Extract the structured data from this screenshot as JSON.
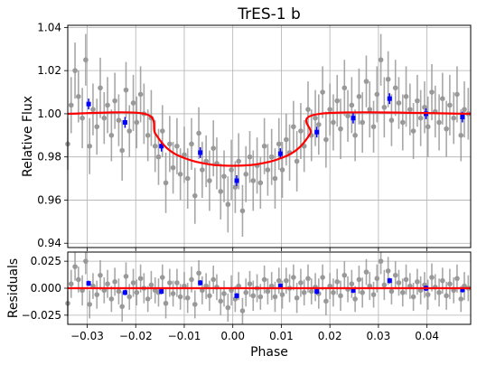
{
  "chart_data": [
    {
      "panel": "main",
      "type": "scatter",
      "title": "TrES-1 b",
      "xlabel": "",
      "ylabel": "Relative Flux",
      "xlim": [
        -0.034,
        0.049
      ],
      "ylim": [
        0.938,
        1.041
      ],
      "xticks": [
        -0.03,
        -0.02,
        -0.01,
        0.0,
        0.01,
        0.02,
        0.03,
        0.04
      ],
      "xtick_labels": [
        "",
        "",
        "",
        "",
        "",
        "",
        "",
        ""
      ],
      "yticks": [
        0.94,
        0.96,
        0.98,
        1.0,
        1.02,
        1.04
      ],
      "ytick_labels": [
        "0.94",
        "0.96",
        "0.98",
        "1.00",
        "1.02",
        "1.04"
      ],
      "grid": true,
      "series": [
        {
          "kind": "observations",
          "color": "#999999",
          "x": [
            -0.034,
            -0.0333,
            -0.0325,
            -0.0318,
            -0.031,
            -0.0303,
            -0.0295,
            -0.0288,
            -0.028,
            -0.0273,
            -0.0265,
            -0.0258,
            -0.025,
            -0.0243,
            -0.0235,
            -0.0228,
            -0.022,
            -0.0213,
            -0.0205,
            -0.0198,
            -0.019,
            -0.0183,
            -0.0175,
            -0.0168,
            -0.016,
            -0.0153,
            -0.0145,
            -0.0138,
            -0.013,
            -0.0123,
            -0.0115,
            -0.0108,
            -0.01,
            -0.0093,
            -0.0085,
            -0.0078,
            -0.007,
            -0.0063,
            -0.0055,
            -0.0048,
            -0.004,
            -0.0033,
            -0.0025,
            -0.0018,
            -0.001,
            -0.0003,
            0.0005,
            0.0012,
            0.002,
            0.0027,
            0.0035,
            0.0042,
            0.005,
            0.0057,
            0.0065,
            0.0072,
            0.008,
            0.0087,
            0.0095,
            0.0102,
            0.011,
            0.0117,
            0.0125,
            0.0132,
            0.014,
            0.0147,
            0.0155,
            0.0162,
            0.017,
            0.0177,
            0.0185,
            0.0192,
            0.02,
            0.0207,
            0.0215,
            0.0222,
            0.023,
            0.0237,
            0.0245,
            0.0252,
            0.026,
            0.0267,
            0.0275,
            0.0282,
            0.029,
            0.0297,
            0.0305,
            0.0312,
            0.032,
            0.0327,
            0.0335,
            0.0342,
            0.035,
            0.0357,
            0.0365,
            0.0372,
            0.038,
            0.0387,
            0.0395,
            0.0402,
            0.041,
            0.0417,
            0.0425,
            0.0432,
            0.044,
            0.0447,
            0.0455,
            0.0462,
            0.047,
            0.0477,
            0.0485
          ],
          "y": [
            0.986,
            1.004,
            1.02,
            1.008,
            0.998,
            1.025,
            0.985,
            1.002,
            0.994,
            1.012,
            0.998,
            1.004,
            0.99,
            1.006,
            0.997,
            0.983,
            1.011,
            0.992,
            1.005,
            0.996,
            1.009,
            1.0,
            0.99,
            0.998,
            0.985,
            0.98,
            0.992,
            0.968,
            0.986,
            0.975,
            0.985,
            0.972,
            0.981,
            0.97,
            0.986,
            0.962,
            0.991,
            0.974,
            0.978,
            0.969,
            0.984,
            0.977,
            0.964,
            0.971,
            0.958,
            0.974,
            0.966,
            0.978,
            0.955,
            0.972,
            0.98,
            0.969,
            0.976,
            0.968,
            0.985,
            0.974,
            0.98,
            0.97,
            0.986,
            0.974,
            0.988,
            0.982,
            0.994,
            0.978,
            0.992,
            0.985,
            1.002,
            0.99,
            0.998,
            0.995,
            1.01,
            0.988,
            1.002,
            0.996,
            1.006,
            0.993,
            1.012,
            0.999,
            1.004,
            0.99,
            1.008,
            0.996,
            1.015,
            1.002,
            0.994,
            1.009,
            1.025,
            1.003,
            1.016,
            0.997,
            1.012,
            1.005,
            0.996,
            1.008,
            1.002,
            0.992,
            1.006,
            0.998,
            1.003,
            0.994,
            1.01,
            1.001,
            0.996,
            1.007,
            0.993,
            1.004,
            0.998,
            1.009,
            0.99,
            1.002,
            1.0
          ],
          "err": [
            0.012,
            0.013,
            0.013,
            0.012,
            0.014,
            0.012,
            0.013,
            0.012,
            0.013,
            0.014,
            0.012,
            0.013,
            0.012,
            0.013,
            0.012,
            0.014,
            0.013,
            0.012,
            0.013,
            0.012,
            0.013,
            0.014,
            0.012,
            0.013,
            0.012,
            0.013,
            0.012,
            0.014,
            0.013,
            0.012,
            0.013,
            0.012,
            0.013,
            0.014,
            0.012,
            0.013,
            0.012,
            0.013,
            0.012,
            0.014,
            0.013,
            0.012,
            0.013,
            0.012,
            0.013,
            0.014,
            0.012,
            0.013,
            0.012,
            0.013,
            0.012,
            0.014,
            0.013,
            0.012,
            0.013,
            0.012,
            0.013,
            0.014,
            0.012,
            0.013,
            0.012,
            0.013,
            0.012,
            0.014,
            0.013,
            0.012,
            0.013,
            0.012,
            0.013,
            0.014,
            0.012,
            0.013,
            0.012,
            0.013,
            0.012,
            0.014,
            0.013,
            0.012,
            0.013,
            0.012,
            0.013,
            0.014,
            0.012,
            0.013,
            0.012,
            0.013,
            0.012,
            0.014,
            0.013,
            0.012,
            0.013,
            0.012,
            0.013,
            0.014,
            0.012,
            0.013,
            0.012,
            0.013,
            0.012,
            0.014,
            0.013,
            0.012,
            0.013,
            0.012,
            0.013,
            0.014,
            0.012,
            0.013,
            0.012,
            0.013,
            0.012
          ]
        },
        {
          "kind": "binned",
          "color": "#0000ff",
          "x": [
            -0.0297,
            -0.0222,
            -0.0147,
            -0.0067,
            0.0008,
            0.0098,
            0.0173,
            0.0248,
            0.0323,
            0.0398,
            0.0473
          ],
          "y": [
            1.0045,
            0.996,
            0.985,
            0.982,
            0.969,
            0.9815,
            0.9915,
            0.998,
            1.007,
            1.0,
            0.9985
          ],
          "err": [
            0.0025,
            0.0025,
            0.0025,
            0.0025,
            0.0025,
            0.0025,
            0.0025,
            0.0025,
            0.0025,
            0.0025,
            0.0025
          ]
        },
        {
          "kind": "model",
          "color": "#ff0000",
          "x": [
            -0.034,
            -0.0182,
            -0.016,
            -0.014,
            -0.012,
            -0.01,
            -0.008,
            -0.006,
            -0.004,
            -0.002,
            0.0,
            0.002,
            0.004,
            0.006,
            0.008,
            0.01,
            0.012,
            0.014,
            0.016,
            0.018,
            0.049
          ],
          "y": [
            1.0,
            1.0,
            0.991,
            0.985,
            0.9815,
            0.9795,
            0.978,
            0.977,
            0.9763,
            0.976,
            0.9759,
            0.976,
            0.9763,
            0.977,
            0.978,
            0.9795,
            0.9815,
            0.985,
            0.991,
            1.0,
            1.0
          ]
        }
      ]
    },
    {
      "panel": "residuals",
      "type": "scatter",
      "title": "",
      "xlabel": "Phase",
      "ylabel": "Residuals",
      "xlim": [
        -0.034,
        0.049
      ],
      "ylim": [
        -0.0335,
        0.0335
      ],
      "xticks": [
        -0.03,
        -0.02,
        -0.01,
        0.0,
        0.01,
        0.02,
        0.03,
        0.04
      ],
      "xtick_labels": [
        "−0.03",
        "−0.02",
        "−0.01",
        "0.00",
        "0.01",
        "0.02",
        "0.03",
        "0.04"
      ],
      "yticks": [
        -0.025,
        0.0,
        0.025
      ],
      "ytick_labels": [
        "−0.025",
        "0.000",
        "0.025"
      ],
      "grid": true,
      "series": [
        {
          "kind": "observations",
          "color": "#999999",
          "x": [
            -0.034,
            -0.0333,
            -0.0325,
            -0.0318,
            -0.031,
            -0.0303,
            -0.0295,
            -0.0288,
            -0.028,
            -0.0273,
            -0.0265,
            -0.0258,
            -0.025,
            -0.0243,
            -0.0235,
            -0.0228,
            -0.022,
            -0.0213,
            -0.0205,
            -0.0198,
            -0.019,
            -0.0183,
            -0.0175,
            -0.0168,
            -0.016,
            -0.0153,
            -0.0145,
            -0.0138,
            -0.013,
            -0.0123,
            -0.0115,
            -0.0108,
            -0.01,
            -0.0093,
            -0.0085,
            -0.0078,
            -0.007,
            -0.0063,
            -0.0055,
            -0.0048,
            -0.004,
            -0.0033,
            -0.0025,
            -0.0018,
            -0.001,
            -0.0003,
            0.0005,
            0.0012,
            0.002,
            0.0027,
            0.0035,
            0.0042,
            0.005,
            0.0057,
            0.0065,
            0.0072,
            0.008,
            0.0087,
            0.0095,
            0.0102,
            0.011,
            0.0117,
            0.0125,
            0.0132,
            0.014,
            0.0147,
            0.0155,
            0.0162,
            0.017,
            0.0177,
            0.0185,
            0.0192,
            0.02,
            0.0207,
            0.0215,
            0.0222,
            0.023,
            0.0237,
            0.0245,
            0.0252,
            0.026,
            0.0267,
            0.0275,
            0.0282,
            0.029,
            0.0297,
            0.0305,
            0.0312,
            0.032,
            0.0327,
            0.0335,
            0.0342,
            0.035,
            0.0357,
            0.0365,
            0.0372,
            0.038,
            0.0387,
            0.0395,
            0.0402,
            0.041,
            0.0417,
            0.0425,
            0.0432,
            0.044,
            0.0447,
            0.0455,
            0.0462,
            0.047,
            0.0477,
            0.0485
          ],
          "y": [
            -0.014,
            0.004,
            0.02,
            0.008,
            -0.002,
            0.025,
            -0.015,
            0.002,
            -0.006,
            0.012,
            -0.002,
            0.004,
            -0.01,
            0.006,
            -0.003,
            -0.017,
            0.011,
            -0.008,
            0.005,
            -0.004,
            0.009,
            0.0,
            -0.01,
            0.003,
            -0.002,
            -0.004,
            0.01,
            -0.014,
            0.005,
            -0.005,
            0.005,
            -0.008,
            0.002,
            -0.009,
            0.008,
            -0.015,
            0.014,
            -0.002,
            0.002,
            -0.007,
            0.008,
            0.001,
            -0.012,
            -0.005,
            -0.018,
            -0.002,
            -0.01,
            0.002,
            -0.021,
            -0.004,
            0.004,
            -0.007,
            0.0,
            -0.008,
            0.008,
            -0.003,
            0.002,
            -0.008,
            0.007,
            -0.006,
            0.007,
            0.0,
            0.01,
            -0.009,
            0.005,
            -0.004,
            0.009,
            -0.003,
            0.001,
            -0.005,
            0.01,
            -0.012,
            0.002,
            -0.004,
            0.006,
            -0.007,
            0.012,
            -0.001,
            0.004,
            -0.01,
            0.008,
            -0.004,
            0.015,
            0.002,
            -0.006,
            0.009,
            0.025,
            0.003,
            0.016,
            -0.003,
            0.012,
            0.005,
            -0.004,
            0.008,
            0.002,
            -0.008,
            0.006,
            -0.002,
            0.003,
            -0.006,
            0.01,
            0.001,
            -0.004,
            0.007,
            -0.007,
            0.004,
            -0.002,
            0.009,
            -0.01,
            0.002,
            0.0
          ],
          "err": [
            0.012,
            0.013,
            0.013,
            0.012,
            0.014,
            0.012,
            0.013,
            0.012,
            0.013,
            0.014,
            0.012,
            0.013,
            0.012,
            0.013,
            0.012,
            0.014,
            0.013,
            0.012,
            0.013,
            0.012,
            0.013,
            0.014,
            0.012,
            0.013,
            0.012,
            0.013,
            0.012,
            0.014,
            0.013,
            0.012,
            0.013,
            0.012,
            0.013,
            0.014,
            0.012,
            0.013,
            0.012,
            0.013,
            0.012,
            0.014,
            0.013,
            0.012,
            0.013,
            0.012,
            0.013,
            0.014,
            0.012,
            0.013,
            0.012,
            0.013,
            0.012,
            0.014,
            0.013,
            0.012,
            0.013,
            0.012,
            0.013,
            0.014,
            0.012,
            0.013,
            0.012,
            0.013,
            0.012,
            0.014,
            0.013,
            0.012,
            0.013,
            0.012,
            0.013,
            0.014,
            0.012,
            0.013,
            0.012,
            0.013,
            0.012,
            0.014,
            0.013,
            0.012,
            0.013,
            0.012,
            0.013,
            0.014,
            0.012,
            0.013,
            0.012,
            0.013,
            0.012,
            0.014,
            0.013,
            0.012,
            0.013,
            0.012,
            0.013,
            0.014,
            0.012,
            0.013,
            0.012,
            0.013,
            0.012,
            0.014,
            0.013,
            0.012,
            0.013,
            0.012,
            0.013,
            0.014,
            0.012,
            0.013,
            0.012,
            0.013,
            0.012
          ]
        },
        {
          "kind": "binned",
          "color": "#0000ff",
          "x": [
            -0.0297,
            -0.0222,
            -0.0147,
            -0.0067,
            0.0008,
            0.0098,
            0.0173,
            0.0248,
            0.0323,
            0.0398,
            0.0473
          ],
          "y": [
            0.0045,
            -0.004,
            -0.003,
            0.005,
            -0.007,
            0.002,
            -0.003,
            -0.002,
            0.007,
            0.0,
            -0.0015
          ],
          "err": [
            0.0025,
            0.0025,
            0.0025,
            0.0025,
            0.0025,
            0.0025,
            0.0025,
            0.0025,
            0.0025,
            0.0025,
            0.0025
          ]
        },
        {
          "kind": "model",
          "color": "#ff0000",
          "x": [
            -0.034,
            0.049
          ],
          "y": [
            0.0,
            0.0
          ]
        }
      ]
    }
  ]
}
